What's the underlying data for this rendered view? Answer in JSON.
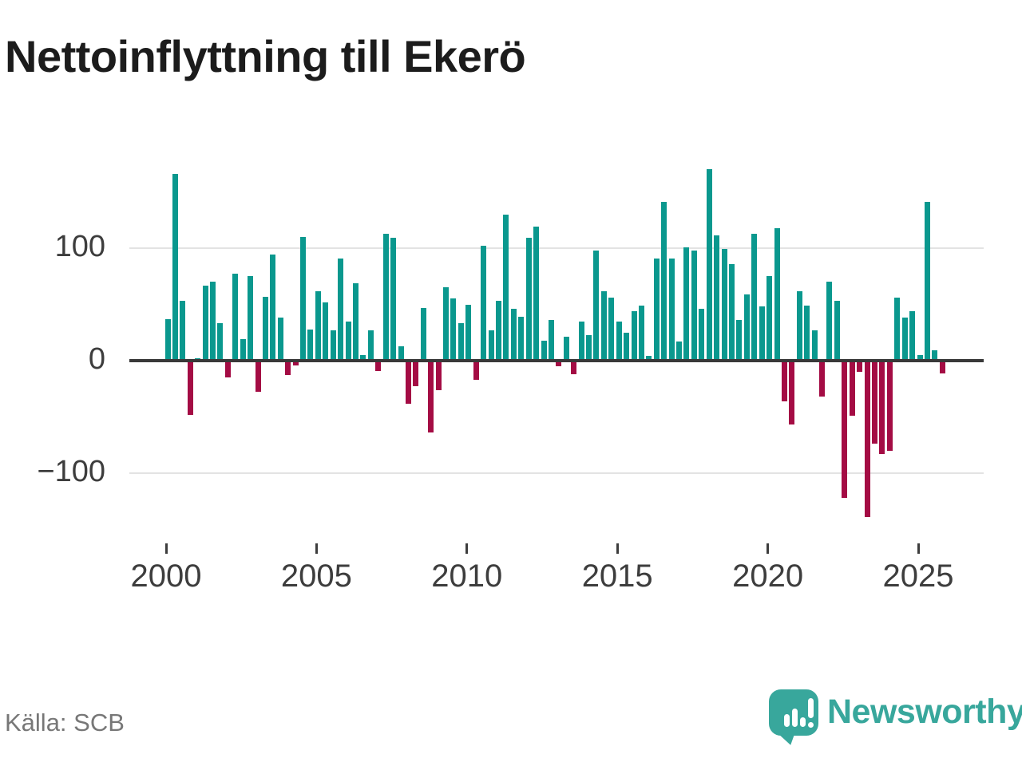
{
  "title": "Nettoinflyttning till Ekerö",
  "source": "Källa: SCB",
  "brand": {
    "name": "Newsworthy",
    "icon": "newsworthy-pin-bar-chart-icon",
    "color": "#38a79c"
  },
  "chart_data": {
    "type": "bar",
    "title": "Nettoinflyttning till Ekerö",
    "frequency": "quarterly",
    "grid": "horizontal",
    "ylim": [
      -150,
      180
    ],
    "bar_colors": {
      "positive": "#0a988e",
      "negative": "#a40c44"
    },
    "y_ticks": [
      {
        "label": "100",
        "value": 100
      },
      {
        "label": "0",
        "value": 0
      },
      {
        "label": "−100",
        "value": -100
      }
    ],
    "x_ticks": [
      {
        "label": "2000",
        "year": 2000
      },
      {
        "label": "2005",
        "year": 2005
      },
      {
        "label": "2010",
        "year": 2010
      },
      {
        "label": "2015",
        "year": 2015
      },
      {
        "label": "2020",
        "year": 2020
      },
      {
        "label": "2025",
        "year": 2025
      }
    ],
    "series": [
      {
        "year": 2000,
        "values": [
          37,
          166,
          53,
          -48
        ]
      },
      {
        "year": 2001,
        "values": [
          2,
          67,
          70,
          33
        ]
      },
      {
        "year": 2002,
        "values": [
          -15,
          77,
          19,
          75
        ]
      },
      {
        "year": 2003,
        "values": [
          -28,
          57,
          94,
          38
        ]
      },
      {
        "year": 2004,
        "values": [
          -13,
          -4,
          110,
          28
        ]
      },
      {
        "year": 2005,
        "values": [
          62,
          52,
          27,
          91
        ]
      },
      {
        "year": 2006,
        "values": [
          35,
          69,
          5,
          27
        ]
      },
      {
        "year": 2007,
        "values": [
          -9,
          113,
          109,
          13
        ]
      },
      {
        "year": 2008,
        "values": [
          -38,
          -23,
          47,
          -64
        ]
      },
      {
        "year": 2009,
        "values": [
          -26,
          65,
          55,
          33
        ]
      },
      {
        "year": 2010,
        "values": [
          50,
          -17,
          102,
          27
        ]
      },
      {
        "year": 2011,
        "values": [
          53,
          130,
          46,
          39
        ]
      },
      {
        "year": 2012,
        "values": [
          109,
          119,
          18,
          36
        ]
      },
      {
        "year": 2013,
        "values": [
          -5,
          21,
          -12,
          35
        ]
      },
      {
        "year": 2014,
        "values": [
          23,
          98,
          62,
          56
        ]
      },
      {
        "year": 2015,
        "values": [
          35,
          25,
          44,
          49
        ]
      },
      {
        "year": 2016,
        "values": [
          4,
          91,
          141,
          91
        ]
      },
      {
        "year": 2017,
        "values": [
          17,
          101,
          98,
          46
        ]
      },
      {
        "year": 2018,
        "values": [
          170,
          111,
          99,
          86
        ]
      },
      {
        "year": 2019,
        "values": [
          36,
          59,
          113,
          48
        ]
      },
      {
        "year": 2020,
        "values": [
          75,
          118,
          -36,
          -57
        ]
      },
      {
        "year": 2021,
        "values": [
          62,
          49,
          27,
          -32
        ]
      },
      {
        "year": 2022,
        "values": [
          70,
          53,
          -122,
          -49
        ]
      },
      {
        "year": 2023,
        "values": [
          -10,
          -139,
          -74,
          -83
        ]
      },
      {
        "year": 2024,
        "values": [
          -80,
          56,
          38,
          44
        ]
      },
      {
        "year": 2025,
        "values": [
          5,
          141,
          9,
          -11
        ]
      }
    ]
  }
}
